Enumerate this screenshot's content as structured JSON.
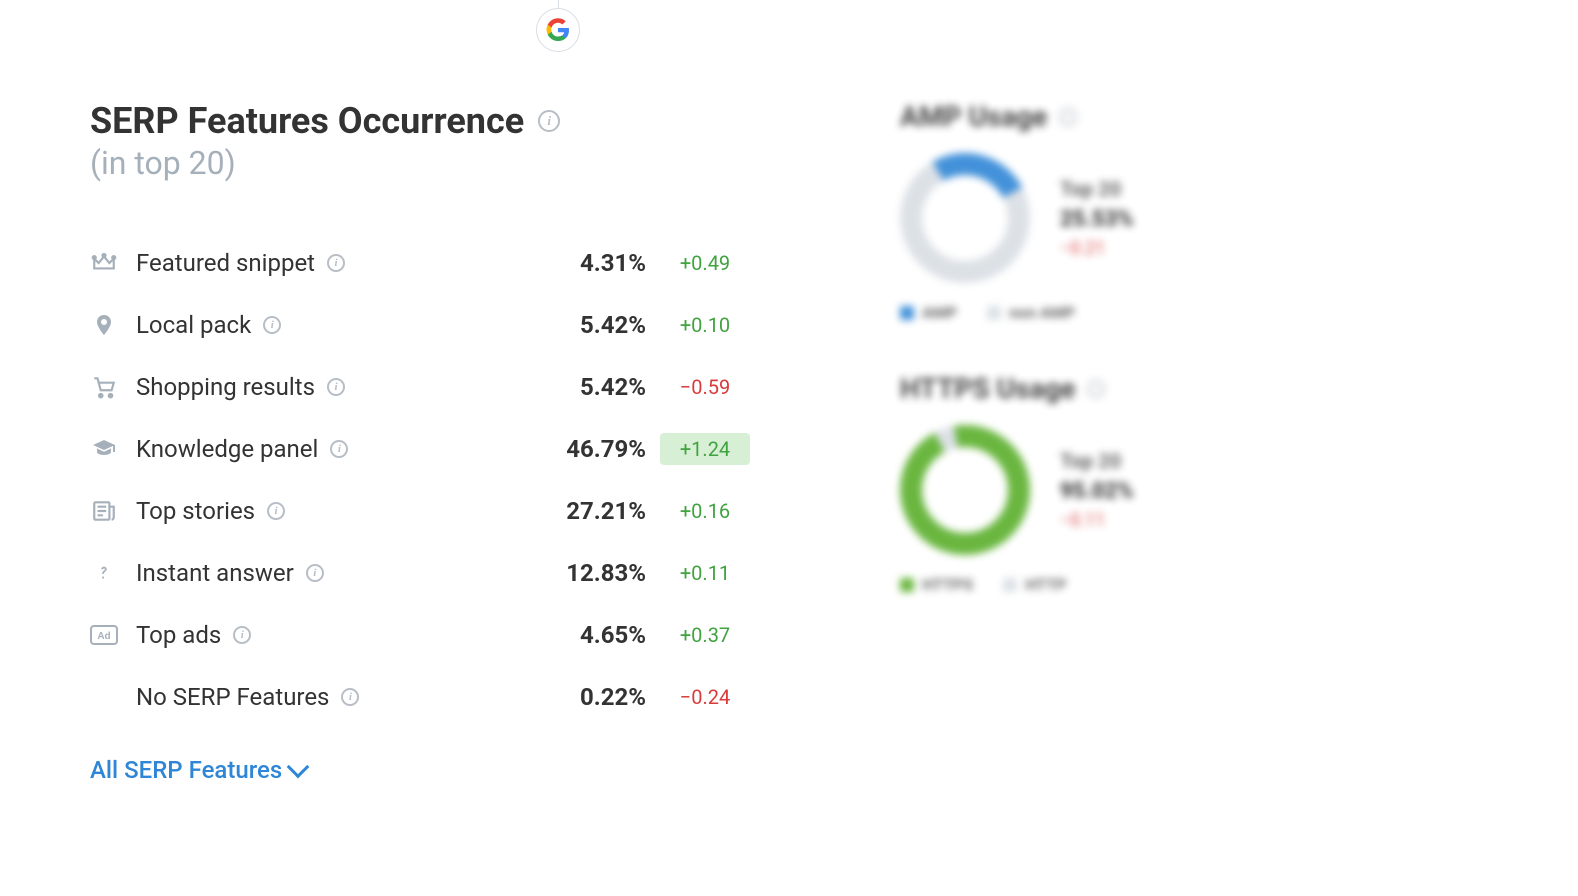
{
  "header": {
    "title": "SERP Features Occurrence",
    "subtitle": "(in top 20)"
  },
  "colors": {
    "text": "#333333",
    "muted": "#a6b0bb",
    "icon": "#a6b0bb",
    "positive": "#3fa33f",
    "negative": "#d93a3a",
    "highlight_bg": "#d7efd4",
    "link": "#2f86d6",
    "amp_primary": "#2f86d6",
    "amp_secondary": "#d9dee4",
    "https_primary": "#5aaf2b",
    "https_secondary": "#d9dee4"
  },
  "rows": [
    {
      "icon": "crown",
      "label": "Featured snippet",
      "pct": "4.31%",
      "delta": "+0.49",
      "sign": "pos",
      "highlight": false
    },
    {
      "icon": "pin",
      "label": "Local pack",
      "pct": "5.42%",
      "delta": "+0.10",
      "sign": "pos",
      "highlight": false
    },
    {
      "icon": "cart",
      "label": "Shopping results",
      "pct": "5.42%",
      "delta": "−0.59",
      "sign": "neg",
      "highlight": false
    },
    {
      "icon": "gradcap",
      "label": "Knowledge panel",
      "pct": "46.79%",
      "delta": "+1.24",
      "sign": "pos",
      "highlight": true
    },
    {
      "icon": "news",
      "label": "Top stories",
      "pct": "27.21%",
      "delta": "+0.16",
      "sign": "pos",
      "highlight": false
    },
    {
      "icon": "question",
      "label": "Instant answer",
      "pct": "12.83%",
      "delta": "+0.11",
      "sign": "pos",
      "highlight": false
    },
    {
      "icon": "ad",
      "label": "Top ads",
      "pct": "4.65%",
      "delta": "+0.37",
      "sign": "pos",
      "highlight": false
    },
    {
      "icon": "",
      "label": "No SERP Features",
      "pct": "0.22%",
      "delta": "−0.24",
      "sign": "neg",
      "highlight": false
    }
  ],
  "link": {
    "label": "All SERP Features"
  },
  "side": {
    "amp": {
      "title": "AMP Usage",
      "donut": {
        "type": "donut",
        "primary_pct": 25.53,
        "primary_color": "#2f86d6",
        "secondary_color": "#d9dee4",
        "start_deg": -30
      },
      "label": "Top 20",
      "value": "25.53%",
      "delta": "−0.21",
      "delta_sign": "neg",
      "legend": [
        {
          "label": "AMP",
          "color": "#2f86d6"
        },
        {
          "label": "non AMP",
          "color": "#d9dee4"
        }
      ]
    },
    "https": {
      "title": "HTTPS Usage",
      "donut": {
        "type": "donut",
        "primary_pct": 95.02,
        "primary_color": "#5aaf2b",
        "secondary_color": "#d9dee4",
        "start_deg": -10
      },
      "label": "Top 20",
      "value": "95.02%",
      "delta": "−0.11",
      "delta_sign": "neg",
      "legend": [
        {
          "label": "HTTPS",
          "color": "#5aaf2b"
        },
        {
          "label": "HTTP",
          "color": "#d9dee4"
        }
      ]
    }
  }
}
